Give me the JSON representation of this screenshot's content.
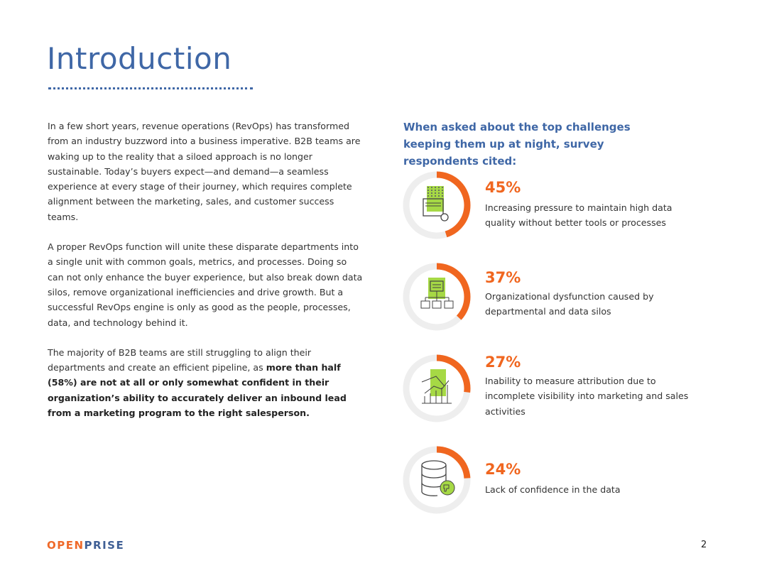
{
  "title": "Introduction",
  "paragraphs": [
    "In a few short years, revenue operations (RevOps) has transformed from an industry buzzword into a business imperative. B2B teams are waking up to the reality that a siloed approach is no longer sustainable. Today’s buyers expect—and demand—a seamless experience at every stage of their journey, which requires complete alignment between the marketing, sales, and customer success teams.",
    "A proper RevOps function will unite these disparate departments into a single unit with common goals, metrics, and processes. Doing so can not only enhance the buyer experience, but also break down data silos, remove organizational inefficiencies and drive growth. But a successful RevOps engine is only as good as the people, processes, data, and technology behind it."
  ],
  "p3": {
    "plain": "The majority of B2B teams are still struggling to align their departments and create an efficient pipeline, as ",
    "bold": "more than half (58%) are not at all or only somewhat confident in their organization’s ability to accurately deliver an inbound lead from a marketing program to the right salesperson."
  },
  "right_heading": "When asked about the top challenges keeping them up at night, survey respondents cited:",
  "stats": [
    {
      "percent": "45%",
      "value": 45,
      "text": "Increasing pressure to maintain high data quality without better tools or processes",
      "icon": "document-gear-icon"
    },
    {
      "percent": "37%",
      "value": 37,
      "text": "Organizational dysfunction caused by departmental and data silos",
      "icon": "org-chart-icon"
    },
    {
      "percent": "27%",
      "value": 27,
      "text": "Inability to measure attribution due to incomplete visibility into marketing and sales activities",
      "icon": "growth-chart-icon"
    },
    {
      "percent": "24%",
      "value": 24,
      "text": "Lack of confidence in the data",
      "icon": "database-thumbs-down-icon"
    }
  ],
  "colors": {
    "accent": "#f0661f",
    "blue": "#3f67a6",
    "green": "#a6d945",
    "track": "#eeeeee"
  },
  "logo": {
    "part1": "OPEN",
    "part2": "PRISE"
  },
  "page_number": "2"
}
